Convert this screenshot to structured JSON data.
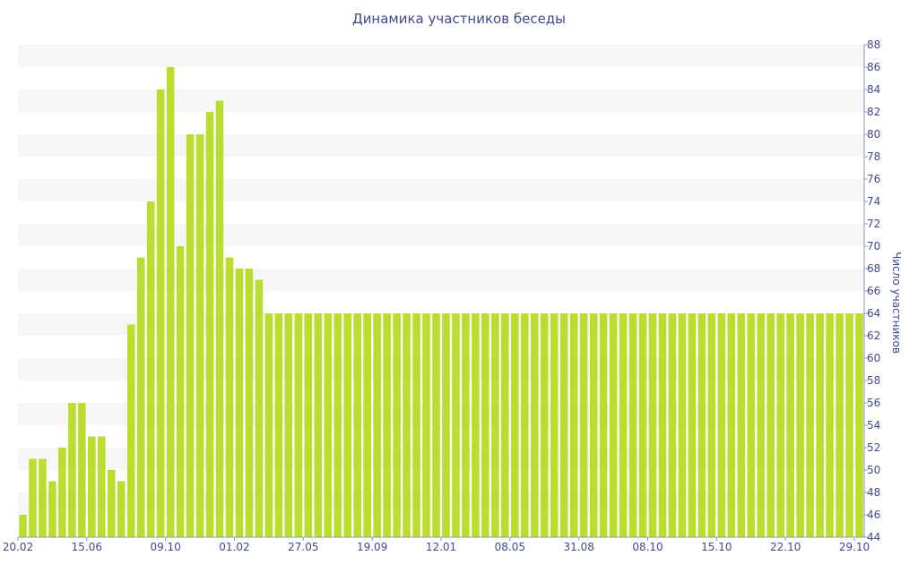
{
  "colors": {
    "bar": "#bade2f",
    "band": "#f6f6f6",
    "axis": "#8c96c0",
    "text": "#3e4a8c"
  },
  "chart_data": {
    "type": "bar",
    "title": "Динамика участников беседы",
    "ylabel": "Число участников",
    "xlabel": "",
    "ylim": [
      44,
      88
    ],
    "y_ticks": [
      44,
      46,
      48,
      50,
      52,
      54,
      56,
      58,
      60,
      62,
      64,
      66,
      68,
      70,
      72,
      74,
      76,
      78,
      80,
      82,
      84,
      86,
      88
    ],
    "grid": "alternating horizontal bands",
    "y_axis_position": "right",
    "x_tick_labels": [
      {
        "index": 0,
        "label": "20.02"
      },
      {
        "index": 7,
        "label": "15.06"
      },
      {
        "index": 15,
        "label": "09.10"
      },
      {
        "index": 22,
        "label": "01.02"
      },
      {
        "index": 29,
        "label": "27.05"
      },
      {
        "index": 36,
        "label": "19.09"
      },
      {
        "index": 43,
        "label": "12.01"
      },
      {
        "index": 50,
        "label": "08.05"
      },
      {
        "index": 57,
        "label": "31.08"
      },
      {
        "index": 64,
        "label": "08.10"
      },
      {
        "index": 71,
        "label": "15.10"
      },
      {
        "index": 78,
        "label": "22.10"
      },
      {
        "index": 85,
        "label": "29.10"
      }
    ],
    "values": [
      46,
      51,
      51,
      49,
      52,
      56,
      56,
      53,
      53,
      50,
      49,
      63,
      69,
      74,
      84,
      86,
      70,
      80,
      80,
      82,
      83,
      69,
      68,
      68,
      67,
      64,
      64,
      64,
      64,
      64,
      64,
      64,
      64,
      64,
      64,
      64,
      64,
      64,
      64,
      64,
      64,
      64,
      64,
      64,
      64,
      64,
      64,
      64,
      64,
      64,
      64,
      64,
      64,
      64,
      64,
      64,
      64,
      64,
      64,
      64,
      64,
      64,
      64,
      64,
      64,
      64,
      64,
      64,
      64,
      64,
      64,
      64,
      64,
      64,
      64,
      64,
      64,
      64,
      64,
      64,
      64,
      64,
      64,
      64,
      64,
      64
    ]
  }
}
